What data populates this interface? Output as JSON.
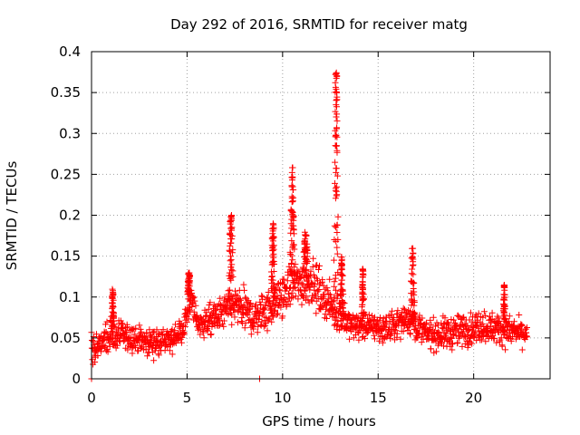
{
  "chart_data": {
    "type": "scatter",
    "title": "Day 292 of 2016, SRMTID for receiver matg",
    "xlabel": "GPS time / hours",
    "ylabel": "SRMTID / TECUs",
    "xlim": [
      0,
      24
    ],
    "ylim": [
      0,
      0.4
    ],
    "x_ticks": [
      0,
      5,
      10,
      15,
      20
    ],
    "x_tick_labels": [
      "0",
      "5",
      "10",
      "15",
      "20"
    ],
    "y_ticks": [
      0,
      0.05,
      0.1,
      0.15,
      0.2,
      0.25,
      0.3,
      0.35,
      0.4
    ],
    "y_tick_labels": [
      "0",
      "0.05",
      "0.1",
      "0.15",
      "0.2",
      "0.25",
      "0.3",
      "0.35",
      "0.4"
    ],
    "grid": true,
    "marker": "plus",
    "color": "#ff0000",
    "x_data_range": [
      0,
      22.8
    ],
    "baseline_profile": [
      {
        "x": 0.0,
        "y": 0.035,
        "spread": 0.02
      },
      {
        "x": 1.0,
        "y": 0.055,
        "spread": 0.025
      },
      {
        "x": 2.0,
        "y": 0.05,
        "spread": 0.022
      },
      {
        "x": 3.0,
        "y": 0.045,
        "spread": 0.02
      },
      {
        "x": 4.0,
        "y": 0.045,
        "spread": 0.02
      },
      {
        "x": 4.8,
        "y": 0.06,
        "spread": 0.02
      },
      {
        "x": 5.2,
        "y": 0.1,
        "spread": 0.022
      },
      {
        "x": 5.6,
        "y": 0.065,
        "spread": 0.02
      },
      {
        "x": 6.5,
        "y": 0.075,
        "spread": 0.025
      },
      {
        "x": 7.5,
        "y": 0.09,
        "spread": 0.028
      },
      {
        "x": 8.5,
        "y": 0.075,
        "spread": 0.03
      },
      {
        "x": 9.5,
        "y": 0.09,
        "spread": 0.03
      },
      {
        "x": 10.5,
        "y": 0.115,
        "spread": 0.035
      },
      {
        "x": 11.5,
        "y": 0.12,
        "spread": 0.035
      },
      {
        "x": 12.5,
        "y": 0.09,
        "spread": 0.03
      },
      {
        "x": 13.5,
        "y": 0.065,
        "spread": 0.022
      },
      {
        "x": 14.5,
        "y": 0.065,
        "spread": 0.02
      },
      {
        "x": 15.5,
        "y": 0.06,
        "spread": 0.022
      },
      {
        "x": 16.5,
        "y": 0.075,
        "spread": 0.022
      },
      {
        "x": 17.5,
        "y": 0.055,
        "spread": 0.022
      },
      {
        "x": 18.5,
        "y": 0.055,
        "spread": 0.025
      },
      {
        "x": 19.5,
        "y": 0.06,
        "spread": 0.025
      },
      {
        "x": 20.5,
        "y": 0.065,
        "spread": 0.025
      },
      {
        "x": 21.5,
        "y": 0.06,
        "spread": 0.022
      },
      {
        "x": 22.8,
        "y": 0.055,
        "spread": 0.02
      }
    ],
    "spikes": [
      {
        "x": 1.1,
        "peak": 0.11,
        "width": 0.2
      },
      {
        "x": 5.1,
        "peak": 0.13,
        "width": 0.25
      },
      {
        "x": 7.3,
        "peak": 0.2,
        "width": 0.35
      },
      {
        "x": 9.5,
        "peak": 0.19,
        "width": 0.25
      },
      {
        "x": 10.5,
        "peak": 0.26,
        "width": 0.3
      },
      {
        "x": 11.2,
        "peak": 0.18,
        "width": 0.35
      },
      {
        "x": 12.8,
        "peak": 0.375,
        "width": 0.3
      },
      {
        "x": 13.1,
        "peak": 0.15,
        "width": 0.2
      },
      {
        "x": 14.2,
        "peak": 0.135,
        "width": 0.15
      },
      {
        "x": 16.8,
        "peak": 0.16,
        "width": 0.3
      },
      {
        "x": 21.6,
        "peak": 0.115,
        "width": 0.15
      }
    ],
    "outliers": [
      {
        "x": 8.8,
        "y": 0.0
      },
      {
        "x": 0.0,
        "y": 0.0
      }
    ]
  }
}
